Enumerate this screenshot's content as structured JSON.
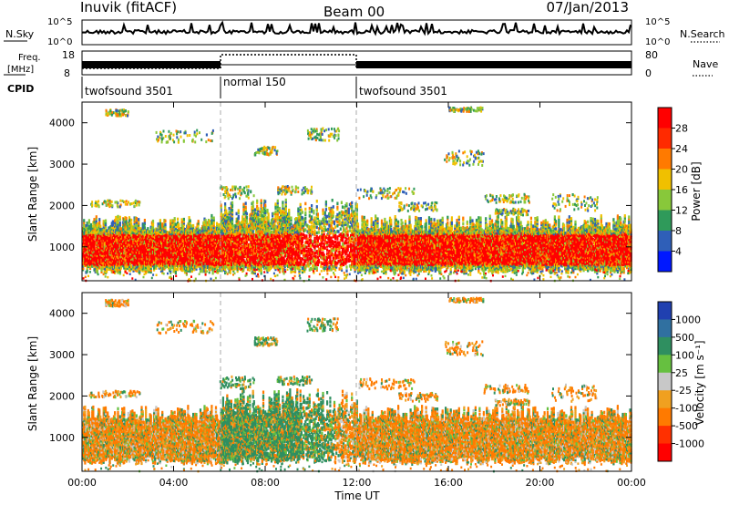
{
  "header": {
    "title": "Inuvik (fitACF)",
    "beam": "Beam 00",
    "date": "07/Jan/2013"
  },
  "noise_panel": {
    "left_label": "N.Sky",
    "right_label": "N.Search",
    "left_ticks": [
      "10^5",
      "10^0"
    ],
    "right_ticks": [
      "10^5",
      "10^0"
    ]
  },
  "freq_panel": {
    "left_label_line1": "Freq.",
    "left_label_line2": "[MHz]",
    "right_label": "Nave",
    "left_ticks": [
      "18",
      "8"
    ],
    "right_ticks": [
      "80",
      "0"
    ]
  },
  "cpid": {
    "label": "CPID",
    "segments": [
      {
        "name": "twofsound 3501",
        "start_hour": 0,
        "end_hour": 6
      },
      {
        "name": "normal 150",
        "start_hour": 6,
        "end_hour": 12
      },
      {
        "name": "twofsound 3501",
        "start_hour": 12,
        "end_hour": 24
      }
    ]
  },
  "chart_data": [
    {
      "type": "heatmap",
      "title": "",
      "xlabel": "Time UT",
      "ylabel": "Slant Range [km]",
      "xlim": [
        0,
        24
      ],
      "ylim": [
        180,
        4500
      ],
      "yticks": [
        "1000",
        "2000",
        "3000",
        "4000"
      ],
      "xticks": [
        "00:00",
        "04:00",
        "08:00",
        "12:00",
        "16:00",
        "20:00",
        "00:00"
      ],
      "colorbar": {
        "label": "Power [dB]",
        "ticks": [
          "28",
          "24",
          "20",
          "16",
          "12",
          "8",
          "4"
        ],
        "colors": [
          "#ff0000",
          "#ff2a00",
          "#ff7a00",
          "#f0c000",
          "#88c83a",
          "#2f9a5a",
          "#2f5fb8",
          "#0018ff"
        ]
      }
    },
    {
      "type": "heatmap",
      "title": "",
      "xlabel": "Time UT",
      "ylabel": "Slant Range [km]",
      "xlim": [
        0,
        24
      ],
      "ylim": [
        180,
        4500
      ],
      "yticks": [
        "1000",
        "2000",
        "3000",
        "4000"
      ],
      "xticks": [
        "00:00",
        "04:00",
        "08:00",
        "12:00",
        "16:00",
        "20:00",
        "00:00"
      ],
      "colorbar": {
        "label": "Velocity [m s⁻¹]",
        "ticks": [
          "1000",
          "500",
          "100",
          "25",
          "-25",
          "-100",
          "-500",
          "-1000"
        ],
        "colors": [
          "#2040b0",
          "#3070a0",
          "#2f8f60",
          "#66c040",
          "#c8c8c8",
          "#f0a020",
          "#ff7a00",
          "#ff3000",
          "#ff0000"
        ]
      }
    }
  ]
}
